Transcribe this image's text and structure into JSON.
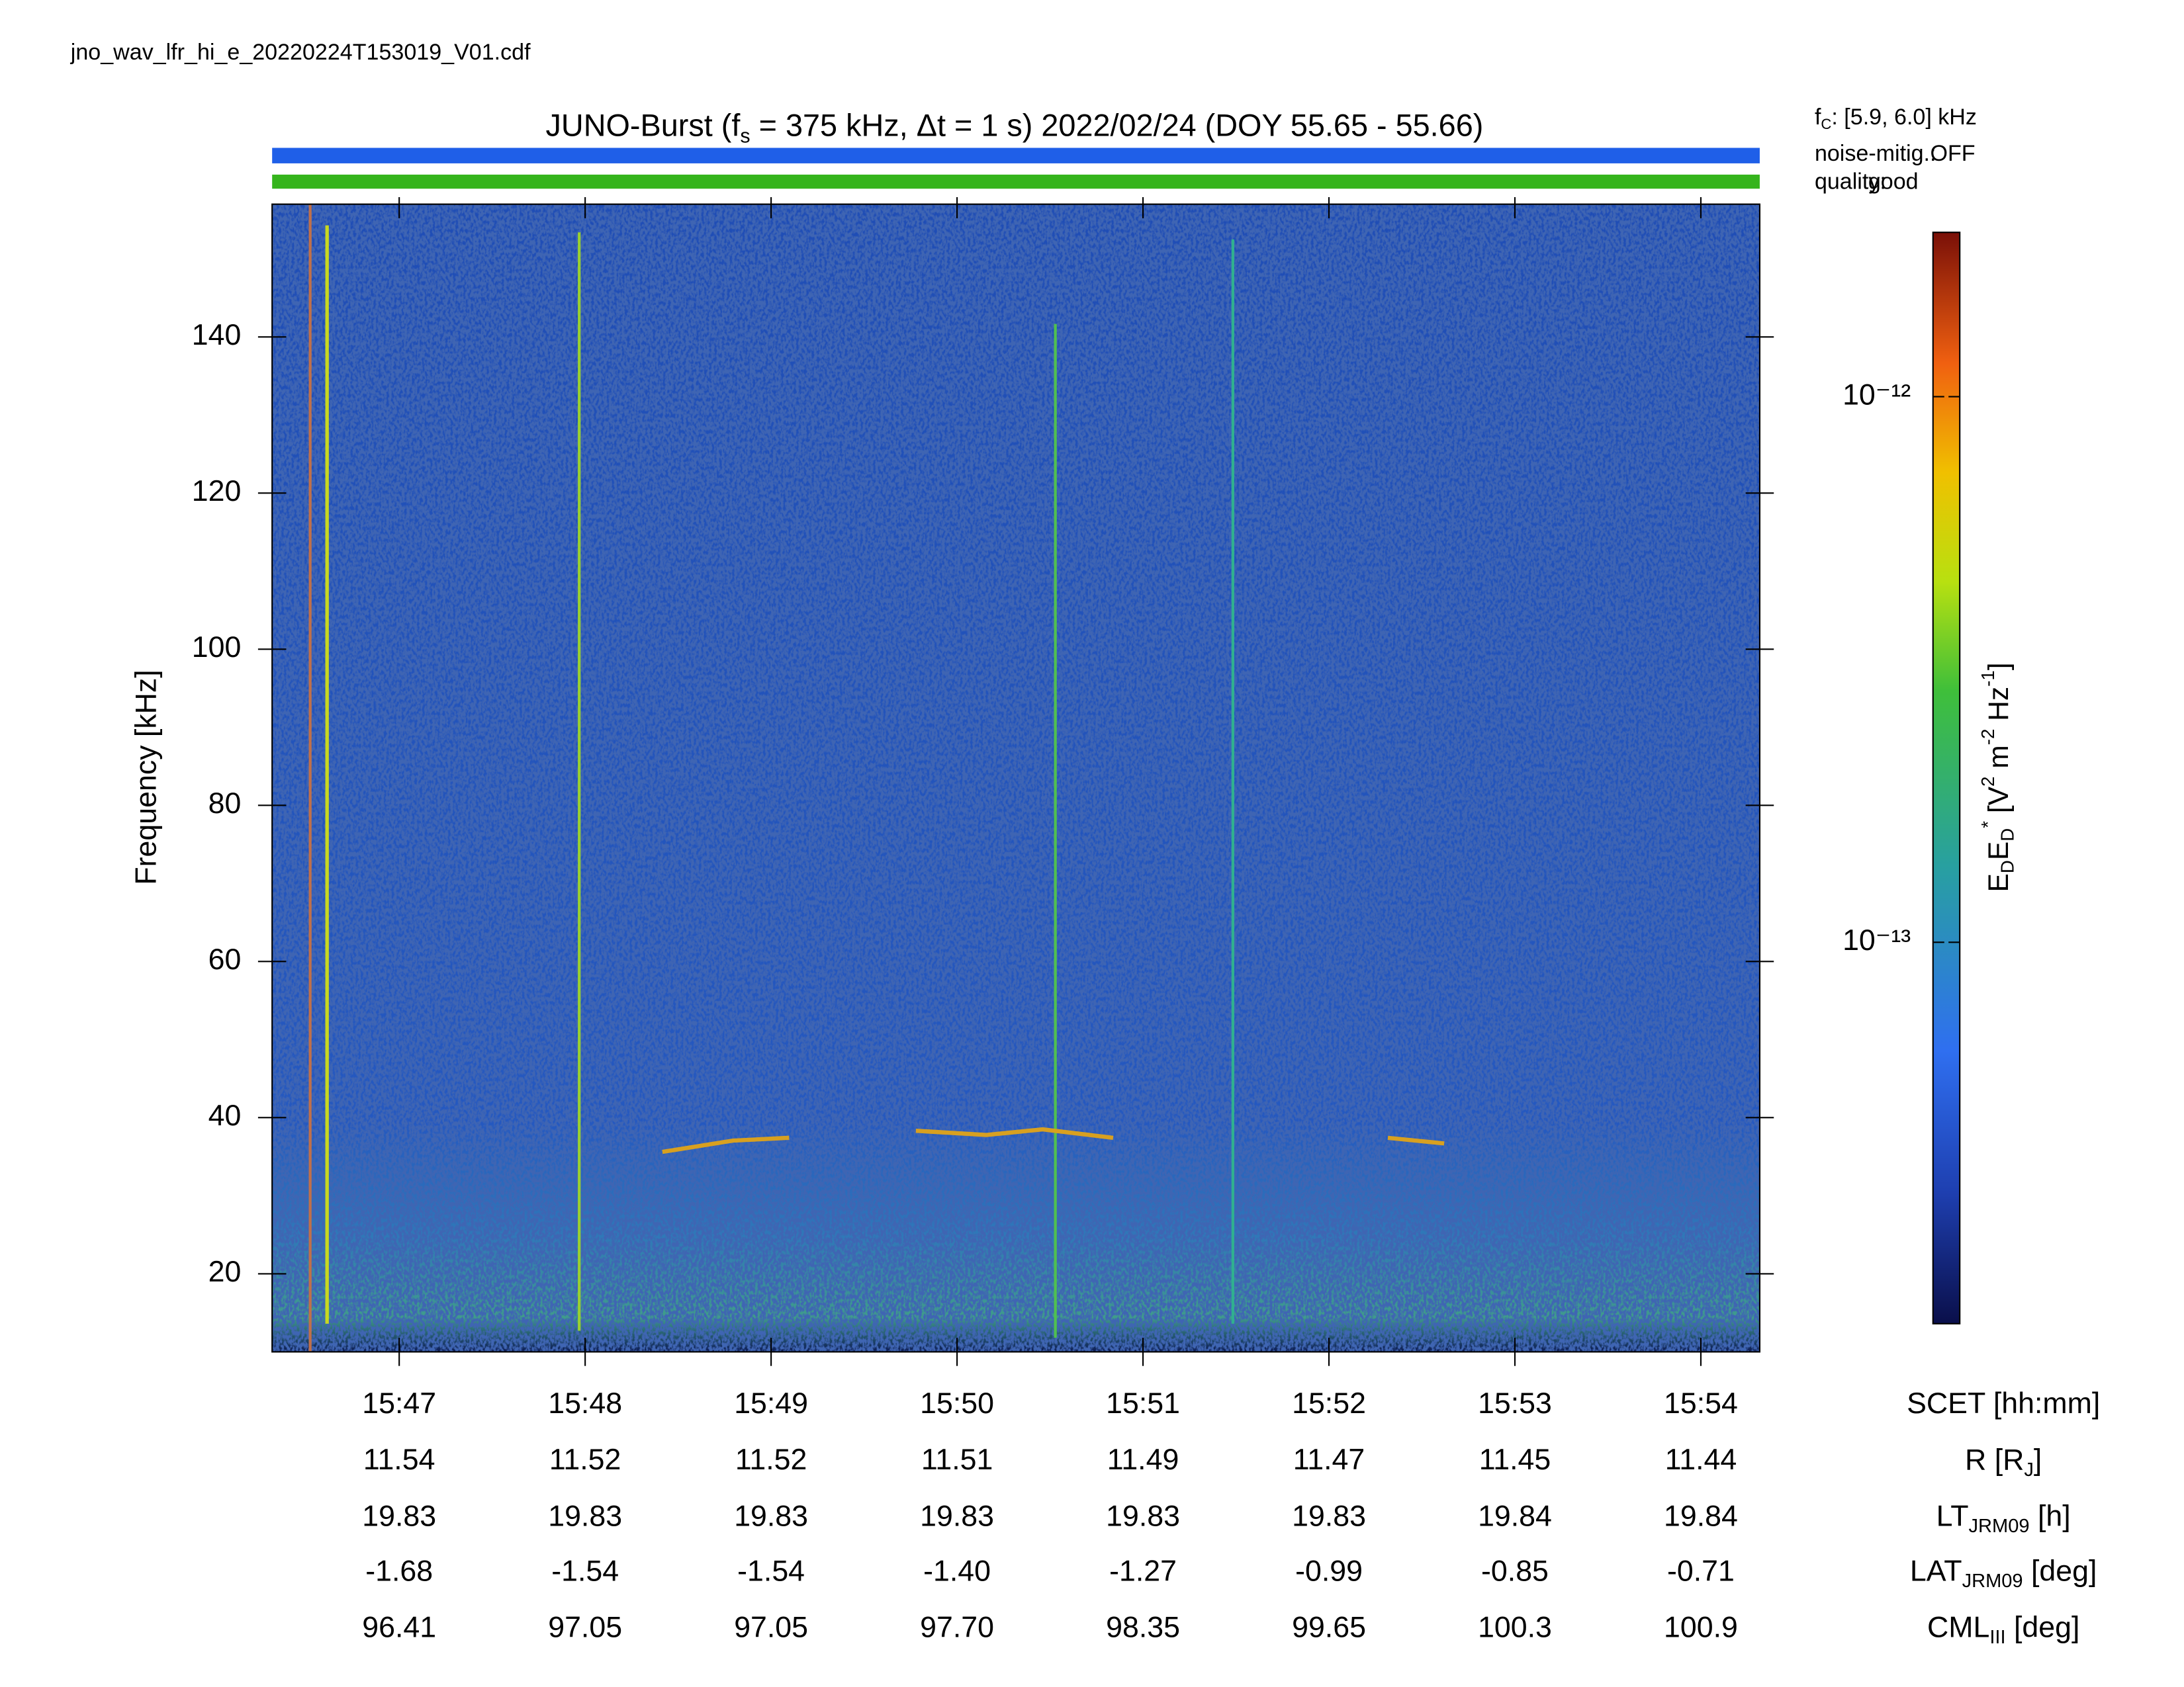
{
  "header": {
    "filename": "jno_wav_lfr_hi_e_20220224T153019_V01.cdf"
  },
  "chart_data": {
    "type": "spectrogram",
    "title": "JUNO-Burst (f_s = 375 kHz, Δt = 1 s)  2022/02/24 (DOY 55.65 - 55.66)",
    "annotations": {
      "fc": "f_C: [5.9, 6.0] kHz",
      "noise_label": "noise-mitig.:",
      "noise_value": "OFF",
      "quality_label": "quality:",
      "quality_value": "good"
    },
    "status_colors": {
      "noise": "#1f5fe8",
      "quality": "#35b41c"
    },
    "y_label": "Frequency [kHz]",
    "ylim": [
      10,
      157
    ],
    "yticks": [
      20,
      40,
      60,
      80,
      100,
      120,
      140
    ],
    "xlim": [
      "15:46:19",
      "15:54:19"
    ],
    "xticks": [
      "15:47",
      "15:48",
      "15:49",
      "15:50",
      "15:51",
      "15:52",
      "15:53",
      "15:54"
    ],
    "x_label": "SCET [hh:mm]",
    "ephemeris": [
      {
        "label": "R [R_J]",
        "values": [
          "11.54",
          "11.52",
          "11.52",
          "11.51",
          "11.49",
          "11.47",
          "11.45",
          "11.44"
        ]
      },
      {
        "label": "LT_{JRM09} [h]",
        "values": [
          "19.83",
          "19.83",
          "19.83",
          "19.83",
          "19.83",
          "19.83",
          "19.84",
          "19.84"
        ]
      },
      {
        "label": "LAT_{JRM09} [deg]",
        "values": [
          "-1.68",
          "-1.54",
          "-1.54",
          "-1.40",
          "-1.27",
          "-0.99",
          "-0.85",
          "-0.71"
        ]
      },
      {
        "label": "CML_{III} [deg]",
        "values": [
          "96.41",
          "97.05",
          "97.05",
          "97.70",
          "98.35",
          "99.65",
          "100.3",
          "100.9"
        ]
      }
    ],
    "colorbar": {
      "label": "E_DE_D^* [V^2 m^{-2} Hz^{-1}]",
      "scale": "log",
      "clim": [
        2e-14,
        2e-12
      ],
      "ticks": [
        {
          "value": 1e-12,
          "label": "10⁻¹²"
        },
        {
          "value": 1e-13,
          "label": "10⁻¹³"
        }
      ]
    }
  }
}
